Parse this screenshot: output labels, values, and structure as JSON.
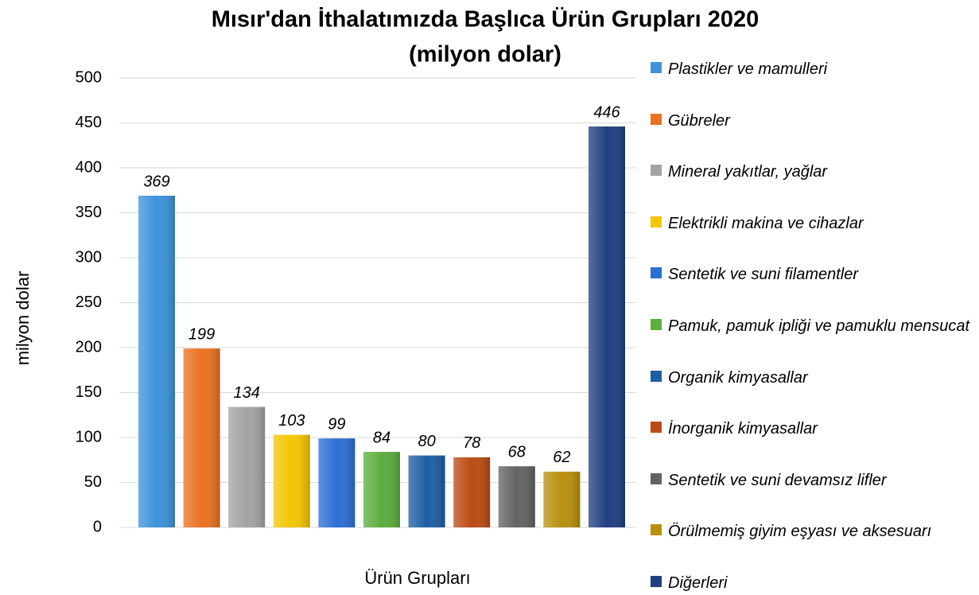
{
  "chart_data": {
    "type": "bar",
    "title": "Mısır'dan İthalatımızda Başlıca Ürün Grupları 2020",
    "subtitle": "(milyon dolar)",
    "y_label": "milyon dolar",
    "x_label": "Ürün Grupları",
    "ylim": [
      0,
      500
    ],
    "yticks": [
      0,
      50,
      100,
      150,
      200,
      250,
      300,
      350,
      400,
      450,
      500
    ],
    "grid": true,
    "series": [
      {
        "name": "Plastikler ve mamulleri",
        "color": "#3d93db",
        "values": [
          369
        ]
      },
      {
        "name": "Gübreler",
        "color": "#ea7220",
        "values": [
          199
        ]
      },
      {
        "name": "Mineral yakıtlar, yağlar",
        "color": "#a3a3a3",
        "values": [
          134
        ]
      },
      {
        "name": "Elektrikli makina ve cihazlar",
        "color": "#f3c600",
        "values": [
          103
        ]
      },
      {
        "name": "Sentetik ve suni filamentler",
        "color": "#2c6fd4",
        "values": [
          99
        ]
      },
      {
        "name": "Pamuk, pamuk ipliği ve pamuklu mensucat",
        "color": "#5cae3e",
        "values": [
          84
        ]
      },
      {
        "name": "Organik kimyasallar",
        "color": "#1d5fa2",
        "values": [
          80
        ]
      },
      {
        "name": "İnorganik kimyasallar",
        "color": "#bb4c14",
        "values": [
          78
        ]
      },
      {
        "name": "Sentetik ve suni devamsız lifler",
        "color": "#636363",
        "values": [
          68
        ]
      },
      {
        "name": "Örülmemiş giyim eşyası ve aksesuarı",
        "color": "#b8900c",
        "values": [
          62
        ]
      },
      {
        "name": "Diğerleri",
        "color": "#203f82",
        "values": [
          446
        ]
      }
    ]
  }
}
